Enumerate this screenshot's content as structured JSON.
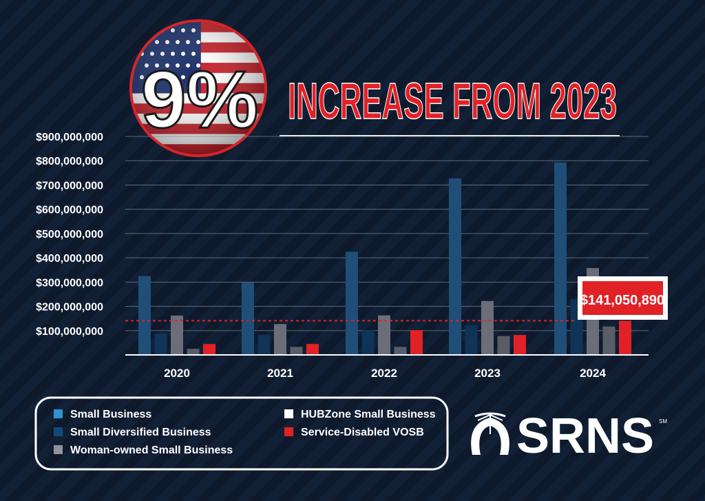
{
  "badge": {
    "text": "9%"
  },
  "headline": {
    "text": "INCREASE FROM 2023"
  },
  "callout": {
    "text": "$141,050,890",
    "value": 141050890
  },
  "logo": {
    "text": "SRNS",
    "mark": "SM"
  },
  "colors": {
    "Small Business": "#1f4e78",
    "Small Diversified Business": "#0f3458",
    "Woman-owned Small Business": "#6b6e78",
    "HUBZone Small Business": "#e8e8ea",
    "Service-Disabled VOSB": "#e02227",
    "accent": "#e02227"
  },
  "chart_data": {
    "type": "bar",
    "categories": [
      "2020",
      "2021",
      "2022",
      "2023",
      "2024"
    ],
    "ylim": [
      0,
      900000000
    ],
    "yticks": [
      {
        "value": 100000000,
        "label": "$100,000,000"
      },
      {
        "value": 200000000,
        "label": "$200,000,000"
      },
      {
        "value": 300000000,
        "label": "$300,000,000"
      },
      {
        "value": 400000000,
        "label": "$400,000,000"
      },
      {
        "value": 500000000,
        "label": "$500,000,000"
      },
      {
        "value": 600000000,
        "label": "$600,000,000"
      },
      {
        "value": 700000000,
        "label": "$700,000,000"
      },
      {
        "value": 800000000,
        "label": "$800,000,000"
      },
      {
        "value": 900000000,
        "label": "$900,000,000"
      }
    ],
    "series": [
      {
        "name": "Small Business",
        "values": [
          325000000,
          298000000,
          425000000,
          727000000,
          793000000
        ]
      },
      {
        "name": "Small Diversified Business",
        "values": [
          88000000,
          82000000,
          103000000,
          122000000,
          230000000
        ]
      },
      {
        "name": "Woman-owned Small Business",
        "values": [
          162000000,
          127000000,
          163000000,
          222000000,
          358000000
        ]
      },
      {
        "name": "HUBZone Small Business",
        "values": [
          25000000,
          33000000,
          33000000,
          78000000,
          117000000
        ]
      },
      {
        "name": "Service-Disabled VOSB",
        "values": [
          45000000,
          45000000,
          102000000,
          82000000,
          141050890
        ]
      }
    ],
    "reference_line": 141050890,
    "grid": true,
    "legend": "bottom-left"
  },
  "legend": {
    "items": [
      {
        "label": "Small Business",
        "color": "#2f93d0"
      },
      {
        "label": "Small Diversified Business",
        "color": "#124a7a"
      },
      {
        "label": "Woman-owned Small Business",
        "color": "#8f939c"
      },
      {
        "label": "HUBZone Small Business",
        "color": "#ffffff"
      },
      {
        "label": "Service-Disabled VOSB",
        "color": "#e02227"
      }
    ]
  }
}
